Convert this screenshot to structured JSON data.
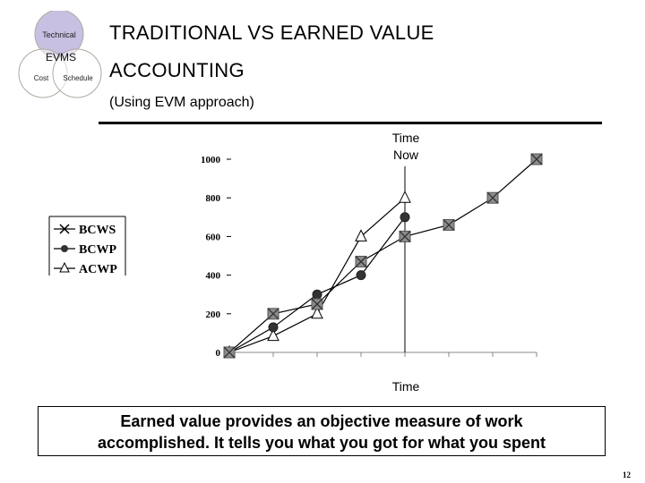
{
  "logo": {
    "top_label": "Technical",
    "center_label": "EVMS",
    "left_label": "Cost",
    "right_label": "Schedule"
  },
  "header": {
    "title_line1": "TRADITIONAL VS EARNED VALUE",
    "title_line2": "ACCOUNTING",
    "subtitle": "(Using EVM approach)"
  },
  "chart_data": {
    "type": "line",
    "x": [
      0,
      1,
      2,
      3,
      4,
      5,
      6,
      7
    ],
    "yticks": [
      0,
      200,
      400,
      600,
      800,
      1000
    ],
    "yticklabels": [
      "0",
      "200",
      "400",
      "600",
      "800",
      "1000"
    ],
    "ylim": [
      0,
      1000
    ],
    "xlabel": "Time",
    "marker_label_line1": "Time",
    "marker_label_line2": "Now",
    "time_now_x": 4,
    "legend_placement": "left",
    "series": [
      {
        "name": "BCWS",
        "marker": "x-square",
        "x": [
          0,
          1,
          2,
          3,
          4,
          5,
          6,
          7
        ],
        "values": [
          0,
          200,
          250,
          470,
          600,
          660,
          800,
          1000
        ]
      },
      {
        "name": "BCWP",
        "marker": "circle",
        "x": [
          0,
          1,
          2,
          3,
          4
        ],
        "values": [
          0,
          130,
          300,
          400,
          700
        ]
      },
      {
        "name": "ACWP",
        "marker": "triangle",
        "x": [
          0,
          1,
          2,
          3,
          4
        ],
        "values": [
          0,
          85,
          200,
          600,
          800
        ]
      }
    ]
  },
  "callout": {
    "line1": "Earned value provides an objective measure of work",
    "line2": "accomplished.  It tells you what you got for what you spent"
  },
  "page_number": "12"
}
